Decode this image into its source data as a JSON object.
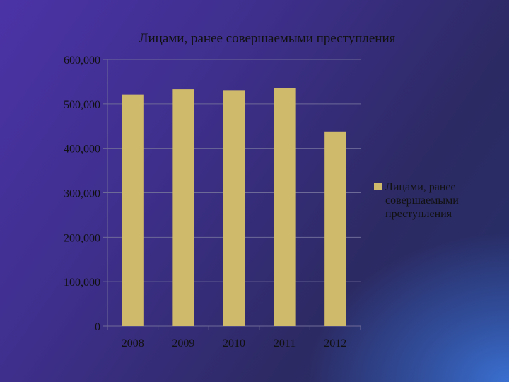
{
  "chart_data": {
    "type": "bar",
    "title": "Лицами, ранее совершаемыми преступления",
    "categories": [
      "2008",
      "2009",
      "2010",
      "2011",
      "2012"
    ],
    "series": [
      {
        "name": "Лицами, ранее совершаемыми преступления",
        "values": [
          521000,
          533000,
          531000,
          535000,
          438000
        ],
        "color": "#cfb96a"
      }
    ],
    "y_ticks": [
      0,
      100000,
      200000,
      300000,
      400000,
      500000,
      600000
    ],
    "y_tick_labels": [
      "0",
      "100,000",
      "200,000",
      "300,000",
      "400,000",
      "500,000",
      "600,000"
    ],
    "ylim": [
      0,
      600000
    ],
    "xlabel": "",
    "ylabel": "",
    "grid": "horizontal",
    "legend_position": "right",
    "legend_lines": [
      "Лицами, ранее",
      "совершаемыми",
      "преступления"
    ],
    "axis_color": "#6e6a98",
    "text_color": "#111111"
  }
}
